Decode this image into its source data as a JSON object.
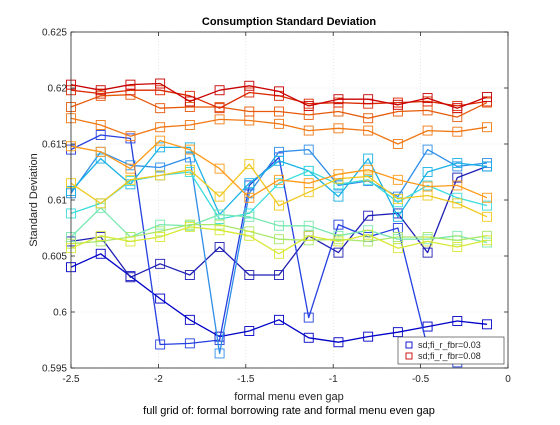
{
  "chart_data": {
    "type": "line",
    "title": "Consumption Standard Deviation",
    "xlabel": "formal menu even gap",
    "ylabel": "Standard Deviation",
    "footer": "full grid of: formal borrowing rate and formal menu even gap",
    "xlim": [
      -2.5,
      0
    ],
    "ylim": [
      0.595,
      0.625
    ],
    "xticks": [
      -2.5,
      -2,
      -1.5,
      -1,
      -0.5,
      0
    ],
    "xtick_labels": [
      "-2.5",
      "-2",
      "-1.5",
      "-1",
      "-0.5",
      "0"
    ],
    "yticks": [
      0.595,
      0.6,
      0.605,
      0.61,
      0.615,
      0.62,
      0.625
    ],
    "ytick_labels": [
      "0.595",
      "0.6",
      "0.605",
      "0.61",
      "0.615",
      "0.62",
      "0.625"
    ],
    "grid": true,
    "marker": "square",
    "x": [
      -2.5,
      -2.33,
      -2.16,
      -1.99,
      -1.82,
      -1.65,
      -1.48,
      -1.31,
      -1.14,
      -0.97,
      -0.8,
      -0.63,
      -0.46,
      -0.29,
      -0.12
    ],
    "series": [
      {
        "name": "sd;fi_r_fbr=0.03",
        "color": "#0000c8",
        "values": [
          0.604,
          0.6052,
          0.6032,
          0.6012,
          0.5993,
          0.5978,
          0.5983,
          0.5993,
          0.5977,
          0.5973,
          0.5978,
          0.5982,
          0.5987,
          0.5992,
          0.5989
        ]
      },
      {
        "name": "",
        "color": "#1f1fb4",
        "values": [
          0.6063,
          0.6067,
          0.6031,
          0.6043,
          0.6033,
          0.6058,
          0.6033,
          0.6033,
          0.6068,
          0.6053,
          0.6086,
          0.6088,
          0.6053,
          0.612,
          0.613
        ]
      },
      {
        "name": "",
        "color": "#2540e0",
        "values": [
          0.6145,
          0.6158,
          0.6155,
          0.5971,
          0.5972,
          0.5975,
          0.6113,
          0.6138,
          0.5995,
          0.6078,
          0.6067,
          0.6075,
          0.5968,
          0.5955,
          0.5958
        ]
      },
      {
        "name": "",
        "color": "#2f8ee8",
        "values": [
          0.6106,
          0.6143,
          0.6131,
          0.6129,
          0.6138,
          0.5963,
          0.6106,
          0.6143,
          0.6145,
          0.6113,
          0.6117,
          0.6103,
          0.6145,
          0.613,
          0.6133
        ]
      },
      {
        "name": "",
        "color": "#19b2e6",
        "values": [
          0.6108,
          0.6137,
          0.6114,
          0.6147,
          0.6147,
          0.6087,
          0.6115,
          0.6135,
          0.6126,
          0.6103,
          0.6137,
          0.6085,
          0.6125,
          0.6133,
          0.613
        ]
      },
      {
        "name": "",
        "color": "#3ddcdc",
        "values": [
          0.6088,
          0.6097,
          0.6117,
          0.6122,
          0.6125,
          0.6083,
          0.6088,
          0.6115,
          0.6126,
          0.6114,
          0.6118,
          0.6098,
          0.6113,
          0.6102,
          0.6095
        ]
      },
      {
        "name": "",
        "color": "#7ae8b0",
        "values": [
          0.6067,
          0.6093,
          0.6067,
          0.6078,
          0.6077,
          0.6087,
          0.6085,
          0.6077,
          0.6077,
          0.6068,
          0.6073,
          0.6065,
          0.6065,
          0.6068,
          0.6062
        ]
      },
      {
        "name": "",
        "color": "#a8e86a",
        "values": [
          0.6061,
          0.6063,
          0.6067,
          0.6072,
          0.6078,
          0.6078,
          0.6072,
          0.6065,
          0.6064,
          0.6065,
          0.6063,
          0.6067,
          0.6067,
          0.6064,
          0.6068
        ]
      },
      {
        "name": "",
        "color": "#d8e836",
        "values": [
          0.6057,
          0.6068,
          0.6063,
          0.6067,
          0.6076,
          0.6073,
          0.6068,
          0.6052,
          0.6068,
          0.6063,
          0.6069,
          0.6057,
          0.6063,
          0.6058,
          0.6064
        ]
      },
      {
        "name": "",
        "color": "#f0c81e",
        "values": [
          0.6115,
          0.6097,
          0.6118,
          0.6122,
          0.6127,
          0.6103,
          0.6132,
          0.6095,
          0.6107,
          0.6119,
          0.6121,
          0.6101,
          0.6104,
          0.6097,
          0.6085
        ]
      },
      {
        "name": "",
        "color": "#ff9a1a",
        "values": [
          0.6148,
          0.6143,
          0.6128,
          0.6153,
          0.6145,
          0.6128,
          0.6102,
          0.6118,
          0.6115,
          0.6123,
          0.6127,
          0.6118,
          0.6112,
          0.6113,
          0.6102
        ]
      },
      {
        "name": "",
        "color": "#f07814",
        "values": [
          0.6173,
          0.6167,
          0.6157,
          0.6165,
          0.6167,
          0.6172,
          0.6171,
          0.6168,
          0.6162,
          0.6164,
          0.6162,
          0.615,
          0.6162,
          0.6161,
          0.6165
        ]
      },
      {
        "name": "",
        "color": "#e65a0a",
        "values": [
          0.6183,
          0.6193,
          0.6194,
          0.6182,
          0.6183,
          0.6183,
          0.6179,
          0.6179,
          0.6176,
          0.6179,
          0.6173,
          0.6179,
          0.618,
          0.6174,
          0.6187
        ]
      },
      {
        "name": "",
        "color": "#dc2800",
        "values": [
          0.6198,
          0.6195,
          0.6198,
          0.6198,
          0.6193,
          0.6182,
          0.6196,
          0.6193,
          0.6186,
          0.6187,
          0.6186,
          0.6187,
          0.6188,
          0.6184,
          0.6188
        ]
      },
      {
        "name": "sd;fi_r_fbr=0.08",
        "color": "#c80000",
        "values": [
          0.6203,
          0.6198,
          0.6203,
          0.6204,
          0.6188,
          0.6198,
          0.6202,
          0.6197,
          0.6184,
          0.619,
          0.619,
          0.6185,
          0.6191,
          0.6182,
          0.6192
        ]
      }
    ]
  }
}
